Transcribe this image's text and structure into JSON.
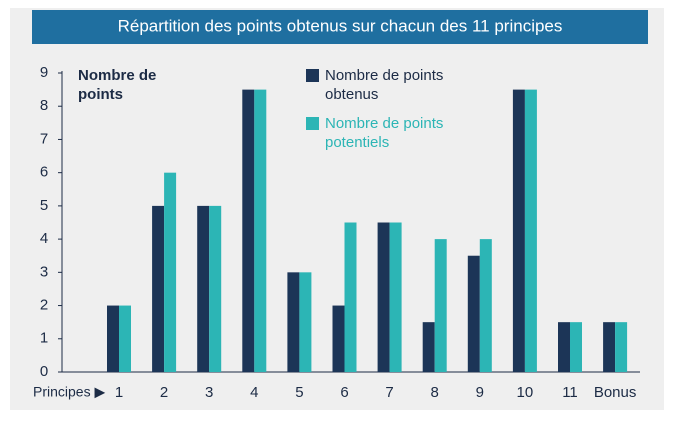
{
  "chart_data": {
    "type": "bar",
    "title": "Répartition des points obtenus sur chacun des 11 principes",
    "y_label": "Nombre de points",
    "x_label": "Principes ▶",
    "categories": [
      "1",
      "2",
      "3",
      "4",
      "5",
      "6",
      "7",
      "8",
      "9",
      "10",
      "11",
      "Bonus"
    ],
    "series": [
      {
        "name": "Nombre de points obtenus",
        "color": "#1c3557",
        "values": [
          2,
          5,
          5,
          8.5,
          3,
          2,
          4.5,
          1.5,
          3.5,
          8.5,
          1.5,
          1.5
        ]
      },
      {
        "name": "Nombre de points potentiels",
        "color": "#2cb5b5",
        "values": [
          2,
          6,
          5,
          8.5,
          3,
          4.5,
          4.5,
          4,
          4,
          8.5,
          1.5,
          1.5
        ]
      }
    ],
    "ylim": [
      0,
      9
    ],
    "yticks": [
      0,
      1,
      2,
      3,
      4,
      5,
      6,
      7,
      8,
      9
    ],
    "grid": false
  }
}
